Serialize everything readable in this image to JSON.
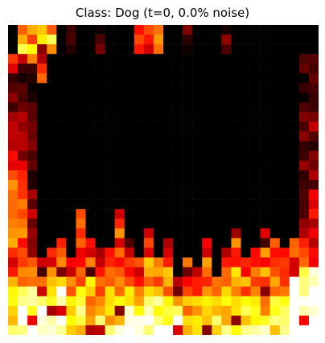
{
  "figure": {
    "title": "Class: Dog (t=0, 0.0% noise)"
  },
  "image": {
    "colormap": "hot",
    "grid": [
      32,
      32
    ],
    "description_colors": {
      "background": "#000000",
      "low": "#8b0000",
      "mid": "#ff2000",
      "high": "#ffd000",
      "peak": "#ffffff"
    }
  }
}
